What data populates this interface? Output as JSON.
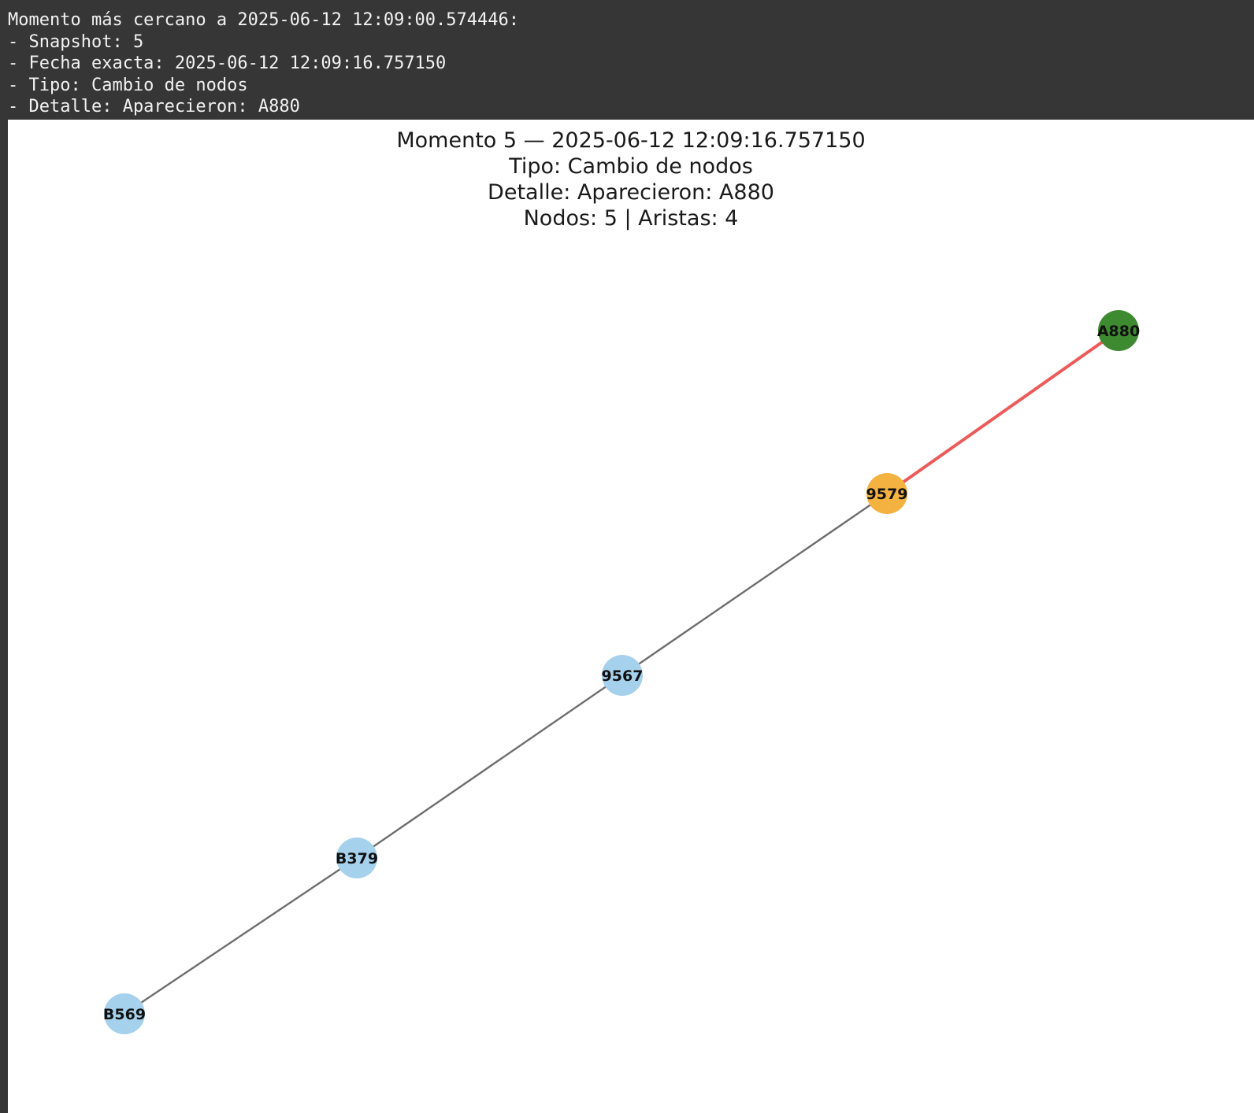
{
  "console": {
    "lines": [
      "Momento más cercano a 2025-06-12 12:09:00.574446:",
      "- Snapshot: 5",
      "- Fecha exacta: 2025-06-12 12:09:16.757150",
      "- Tipo: Cambio de nodos",
      "- Detalle: Aparecieron: A880"
    ]
  },
  "figure": {
    "title_lines": [
      "Momento 5 — 2025-06-12 12:09:16.757150",
      "Tipo: Cambio de nodos",
      "Detalle: Aparecieron: A880",
      "Nodos: 5 | Aristas: 4"
    ]
  },
  "colors": {
    "console_bg": "#363636",
    "console_text": "#f2f2f2",
    "node_default": "#a6d1ec",
    "node_highlight": "#f4b240",
    "node_new": "#3d8a30",
    "edge_default": "#6e6e6e",
    "edge_new": "#ec5a5a"
  },
  "chart_data": {
    "type": "graph",
    "nodes": [
      {
        "id": "A880",
        "status": "new"
      },
      {
        "id": "9579",
        "status": "highlight"
      },
      {
        "id": "9567",
        "status": "default"
      },
      {
        "id": "B379",
        "status": "default"
      },
      {
        "id": "B569",
        "status": "default"
      }
    ],
    "edges": [
      {
        "source": "9579",
        "target": "A880",
        "status": "new"
      },
      {
        "source": "9579",
        "target": "9567",
        "status": "default"
      },
      {
        "source": "9567",
        "target": "B379",
        "status": "default"
      },
      {
        "source": "B379",
        "target": "B569",
        "status": "default"
      }
    ]
  }
}
